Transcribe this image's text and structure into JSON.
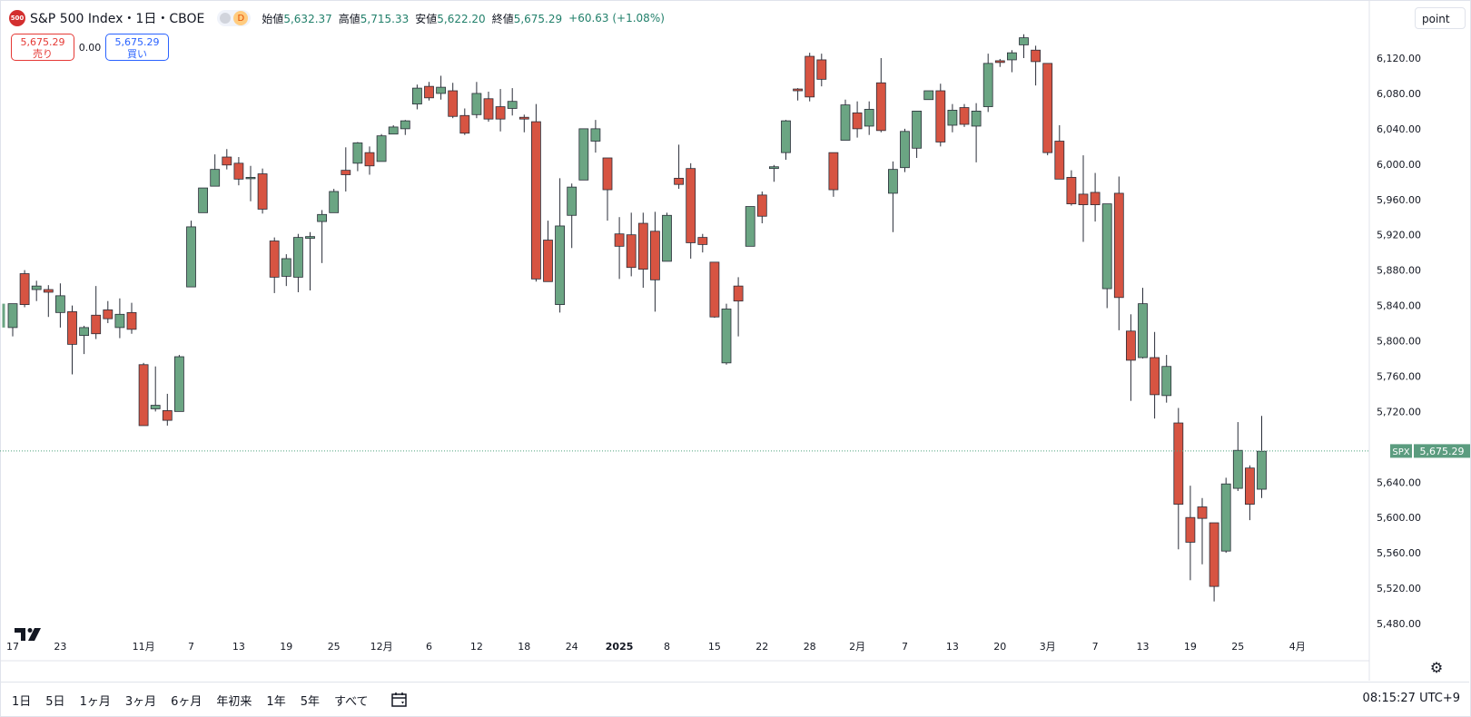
{
  "header": {
    "logo_text": "500",
    "title": "S&P 500 Index・1日・CBOE",
    "badge": "D",
    "ohlc": [
      {
        "key": "始値",
        "value": "5,632.37"
      },
      {
        "key": "高値",
        "value": "5,715.33"
      },
      {
        "key": "安値",
        "value": "5,622.20"
      },
      {
        "key": "終値",
        "value": "5,675.29"
      }
    ],
    "change": "+60.63 (+1.08%)"
  },
  "trade": {
    "sell_price": "5,675.29",
    "sell_label": "売り",
    "spread": "0.00",
    "buy_price": "5,675.29",
    "buy_label": "買い"
  },
  "scale_mode": "point",
  "price_label": {
    "symbol": "SPX",
    "price": "5,675.29"
  },
  "ranges": [
    "1日",
    "5日",
    "1ヶ月",
    "3ヶ月",
    "6ヶ月",
    "年初来",
    "1年",
    "5年",
    "すべて"
  ],
  "clock": "08:15:27 UTC+9",
  "colors": {
    "up": "#6ba583",
    "down": "#d75442",
    "outline": "#2a2e39",
    "last_line": "#4fa27f"
  },
  "chart_data": {
    "type": "candlestick",
    "yticks": [
      6120,
      6080,
      6040,
      6000,
      5960,
      5920,
      5880,
      5840,
      5800,
      5760,
      5720,
      5640,
      5600,
      5560,
      5520,
      5480
    ],
    "ytick_labels": [
      "6,120.00",
      "6,080.00",
      "6,040.00",
      "6,000.00",
      "5,960.00",
      "5,920.00",
      "5,880.00",
      "5,840.00",
      "5,800.00",
      "5,760.00",
      "5,720.00",
      "5,640.00",
      "5,600.00",
      "5,560.00",
      "5,520.00",
      "5,480.00"
    ],
    "xticks": [
      {
        "i": 0,
        "label": "17"
      },
      {
        "i": 4,
        "label": "23"
      },
      {
        "i": 11,
        "label": "11月"
      },
      {
        "i": 15,
        "label": "7"
      },
      {
        "i": 19,
        "label": "13"
      },
      {
        "i": 23,
        "label": "19"
      },
      {
        "i": 27,
        "label": "25"
      },
      {
        "i": 31,
        "label": "12月"
      },
      {
        "i": 35,
        "label": "6"
      },
      {
        "i": 39,
        "label": "12"
      },
      {
        "i": 43,
        "label": "18"
      },
      {
        "i": 47,
        "label": "24"
      },
      {
        "i": 51,
        "label": "2025"
      },
      {
        "i": 55,
        "label": "8"
      },
      {
        "i": 59,
        "label": "15"
      },
      {
        "i": 63,
        "label": "22"
      },
      {
        "i": 67,
        "label": "28"
      },
      {
        "i": 71,
        "label": "2月"
      },
      {
        "i": 75,
        "label": "7"
      },
      {
        "i": 79,
        "label": "13"
      },
      {
        "i": 83,
        "label": "20"
      },
      {
        "i": 87,
        "label": "3月"
      },
      {
        "i": 91,
        "label": "7"
      },
      {
        "i": 95,
        "label": "13"
      },
      {
        "i": 99,
        "label": "19"
      },
      {
        "i": 103,
        "label": "25"
      },
      {
        "i": 108,
        "label": "4月"
      }
    ],
    "last_price": 5675.29,
    "candles": [
      {
        "o": 5815,
        "h": 5840,
        "l": 5805,
        "c": 5842
      },
      {
        "o": 5876,
        "h": 5880,
        "l": 5838,
        "c": 5841
      },
      {
        "o": 5858,
        "h": 5868,
        "l": 5845,
        "c": 5862
      },
      {
        "o": 5858,
        "h": 5863,
        "l": 5827,
        "c": 5855
      },
      {
        "o": 5832,
        "h": 5865,
        "l": 5815,
        "c": 5851
      },
      {
        "o": 5833,
        "h": 5840,
        "l": 5762,
        "c": 5796
      },
      {
        "o": 5806,
        "h": 5817,
        "l": 5785,
        "c": 5815
      },
      {
        "o": 5829,
        "h": 5862,
        "l": 5802,
        "c": 5808
      },
      {
        "o": 5835,
        "h": 5845,
        "l": 5820,
        "c": 5825
      },
      {
        "o": 5815,
        "h": 5848,
        "l": 5803,
        "c": 5830
      },
      {
        "o": 5832,
        "h": 5843,
        "l": 5808,
        "c": 5813
      },
      {
        "o": 5773,
        "h": 5775,
        "l": 5704,
        "c": 5704
      },
      {
        "o": 5723,
        "h": 5771,
        "l": 5720,
        "c": 5727
      },
      {
        "o": 5721,
        "h": 5740,
        "l": 5704,
        "c": 5710
      },
      {
        "o": 5720,
        "h": 5784,
        "l": 5720,
        "c": 5782
      },
      {
        "o": 5861,
        "h": 5936,
        "l": 5861,
        "c": 5929
      },
      {
        "o": 5945,
        "h": 5972,
        "l": 5945,
        "c": 5973
      },
      {
        "o": 5975,
        "h": 6011,
        "l": 5975,
        "c": 5994
      },
      {
        "o": 6008,
        "h": 6017,
        "l": 5994,
        "c": 5999
      },
      {
        "o": 6001,
        "h": 6008,
        "l": 5976,
        "c": 5983
      },
      {
        "o": 5985,
        "h": 5998,
        "l": 5958,
        "c": 5985
      },
      {
        "o": 5989,
        "h": 5995,
        "l": 5944,
        "c": 5949
      },
      {
        "o": 5913,
        "h": 5917,
        "l": 5854,
        "c": 5872
      },
      {
        "o": 5873,
        "h": 5898,
        "l": 5862,
        "c": 5893
      },
      {
        "o": 5872,
        "h": 5921,
        "l": 5855,
        "c": 5917
      },
      {
        "o": 5916,
        "h": 5923,
        "l": 5857,
        "c": 5918
      },
      {
        "o": 5935,
        "h": 5948,
        "l": 5888,
        "c": 5943
      },
      {
        "o": 5945,
        "h": 5972,
        "l": 5945,
        "c": 5969
      },
      {
        "o": 5993,
        "h": 6019,
        "l": 5969,
        "c": 5988
      },
      {
        "o": 6001,
        "h": 6025,
        "l": 5992,
        "c": 6024
      },
      {
        "o": 6013,
        "h": 6020,
        "l": 5988,
        "c": 5998
      },
      {
        "o": 6003,
        "h": 6034,
        "l": 6003,
        "c": 6032
      },
      {
        "o": 6034,
        "h": 6044,
        "l": 6034,
        "c": 6042
      },
      {
        "o": 6040,
        "h": 6050,
        "l": 6033,
        "c": 6049
      },
      {
        "o": 6068,
        "h": 6090,
        "l": 6062,
        "c": 6086
      },
      {
        "o": 6088,
        "h": 6093,
        "l": 6072,
        "c": 6075
      },
      {
        "o": 6080,
        "h": 6100,
        "l": 6073,
        "c": 6087
      },
      {
        "o": 6083,
        "h": 6092,
        "l": 6052,
        "c": 6054
      },
      {
        "o": 6055,
        "h": 6063,
        "l": 6033,
        "c": 6035
      },
      {
        "o": 6056,
        "h": 6093,
        "l": 6052,
        "c": 6080
      },
      {
        "o": 6074,
        "h": 6082,
        "l": 6048,
        "c": 6051
      },
      {
        "o": 6065,
        "h": 6085,
        "l": 6037,
        "c": 6051
      },
      {
        "o": 6063,
        "h": 6086,
        "l": 6055,
        "c": 6071
      },
      {
        "o": 6053,
        "h": 6056,
        "l": 6036,
        "c": 6051
      },
      {
        "o": 6048,
        "h": 6068,
        "l": 5867,
        "c": 5870
      },
      {
        "o": 5914,
        "h": 5936,
        "l": 5867,
        "c": 5867
      },
      {
        "o": 5841,
        "h": 5984,
        "l": 5832,
        "c": 5930
      },
      {
        "o": 5942,
        "h": 5978,
        "l": 5905,
        "c": 5974
      },
      {
        "o": 5982,
        "h": 6040,
        "l": 5982,
        "c": 6040
      },
      {
        "o": 6026,
        "h": 6050,
        "l": 6013,
        "c": 6040
      },
      {
        "o": 6007,
        "h": 6007,
        "l": 5936,
        "c": 5971
      },
      {
        "o": 5921,
        "h": 5940,
        "l": 5870,
        "c": 5907
      },
      {
        "o": 5920,
        "h": 5945,
        "l": 5873,
        "c": 5883
      },
      {
        "o": 5933,
        "h": 5945,
        "l": 5860,
        "c": 5881
      },
      {
        "o": 5924,
        "h": 5946,
        "l": 5833,
        "c": 5869
      },
      {
        "o": 5890,
        "h": 5945,
        "l": 5890,
        "c": 5942
      },
      {
        "o": 5984,
        "h": 6022,
        "l": 5972,
        "c": 5977
      },
      {
        "o": 5995,
        "h": 6001,
        "l": 5893,
        "c": 5911
      },
      {
        "o": 5917,
        "h": 5921,
        "l": 5900,
        "c": 5909
      },
      {
        "o": 5889,
        "h": 5889,
        "l": 5826,
        "c": 5827
      },
      {
        "o": 5775,
        "h": 5842,
        "l": 5773,
        "c": 5836
      },
      {
        "o": 5862,
        "h": 5872,
        "l": 5805,
        "c": 5845
      },
      {
        "o": 5907,
        "h": 5952,
        "l": 5907,
        "c": 5952
      },
      {
        "o": 5965,
        "h": 5969,
        "l": 5933,
        "c": 5941
      },
      {
        "o": 5995,
        "h": 5999,
        "l": 5980,
        "c": 5997
      },
      {
        "o": 6013,
        "h": 6050,
        "l": 6005,
        "c": 6049
      },
      {
        "o": 6085,
        "h": 6086,
        "l": 6072,
        "c": 6083
      },
      {
        "o": 6122,
        "h": 6126,
        "l": 6071,
        "c": 6076
      },
      {
        "o": 6118,
        "h": 6125,
        "l": 6088,
        "c": 6096
      },
      {
        "o": 6013,
        "h": 6013,
        "l": 5963,
        "c": 5971
      },
      {
        "o": 6027,
        "h": 6073,
        "l": 6027,
        "c": 6067
      },
      {
        "o": 6058,
        "h": 6071,
        "l": 6030,
        "c": 6040
      },
      {
        "o": 6043,
        "h": 6071,
        "l": 6033,
        "c": 6062
      },
      {
        "o": 6092,
        "h": 6120,
        "l": 6036,
        "c": 6038
      },
      {
        "o": 5967,
        "h": 6003,
        "l": 5923,
        "c": 5994
      },
      {
        "o": 5996,
        "h": 6040,
        "l": 5991,
        "c": 6037
      },
      {
        "o": 6018,
        "h": 6060,
        "l": 6007,
        "c": 6060
      },
      {
        "o": 6073,
        "h": 6083,
        "l": 6076,
        "c": 6083
      },
      {
        "o": 6083,
        "h": 6091,
        "l": 6020,
        "c": 6025
      },
      {
        "o": 6044,
        "h": 6068,
        "l": 6036,
        "c": 6061
      },
      {
        "o": 6064,
        "h": 6068,
        "l": 6042,
        "c": 6045
      },
      {
        "o": 6043,
        "h": 6069,
        "l": 6002,
        "c": 6060
      },
      {
        "o": 6065,
        "h": 6125,
        "l": 6059,
        "c": 6114
      },
      {
        "o": 6117,
        "h": 6119,
        "l": 6110,
        "c": 6115
      },
      {
        "o": 6118,
        "h": 6129,
        "l": 6104,
        "c": 6126
      },
      {
        "o": 6135,
        "h": 6147,
        "l": 6120,
        "c": 6143
      },
      {
        "o": 6129,
        "h": 6134,
        "l": 6089,
        "c": 6116
      },
      {
        "o": 6114,
        "h": 6114,
        "l": 6010,
        "c": 6013
      },
      {
        "o": 6026,
        "h": 6044,
        "l": 5985,
        "c": 5983
      },
      {
        "o": 5985,
        "h": 5993,
        "l": 5953,
        "c": 5955
      },
      {
        "o": 5966,
        "h": 6010,
        "l": 5912,
        "c": 5954
      },
      {
        "o": 5968,
        "h": 5990,
        "l": 5935,
        "c": 5954
      },
      {
        "o": 5859,
        "h": 5950,
        "l": 5837,
        "c": 5955
      },
      {
        "o": 5967,
        "h": 5986,
        "l": 5812,
        "c": 5849
      },
      {
        "o": 5811,
        "h": 5830,
        "l": 5732,
        "c": 5778
      },
      {
        "o": 5781,
        "h": 5860,
        "l": 5780,
        "c": 5842
      },
      {
        "o": 5781,
        "h": 5810,
        "l": 5712,
        "c": 5739
      },
      {
        "o": 5738,
        "h": 5784,
        "l": 5730,
        "c": 5771
      },
      {
        "o": 5707,
        "h": 5724,
        "l": 5564,
        "c": 5615
      },
      {
        "o": 5600,
        "h": 5636,
        "l": 5529,
        "c": 5572
      },
      {
        "o": 5612,
        "h": 5622,
        "l": 5547,
        "c": 5599
      },
      {
        "o": 5594,
        "h": 5594,
        "l": 5505,
        "c": 5522
      },
      {
        "o": 5562,
        "h": 5645,
        "l": 5560,
        "c": 5638
      },
      {
        "o": 5633,
        "h": 5708,
        "l": 5630,
        "c": 5676
      },
      {
        "o": 5656,
        "h": 5659,
        "l": 5597,
        "c": 5615
      },
      {
        "o": 5632,
        "h": 5715,
        "l": 5622,
        "c": 5675
      }
    ]
  }
}
